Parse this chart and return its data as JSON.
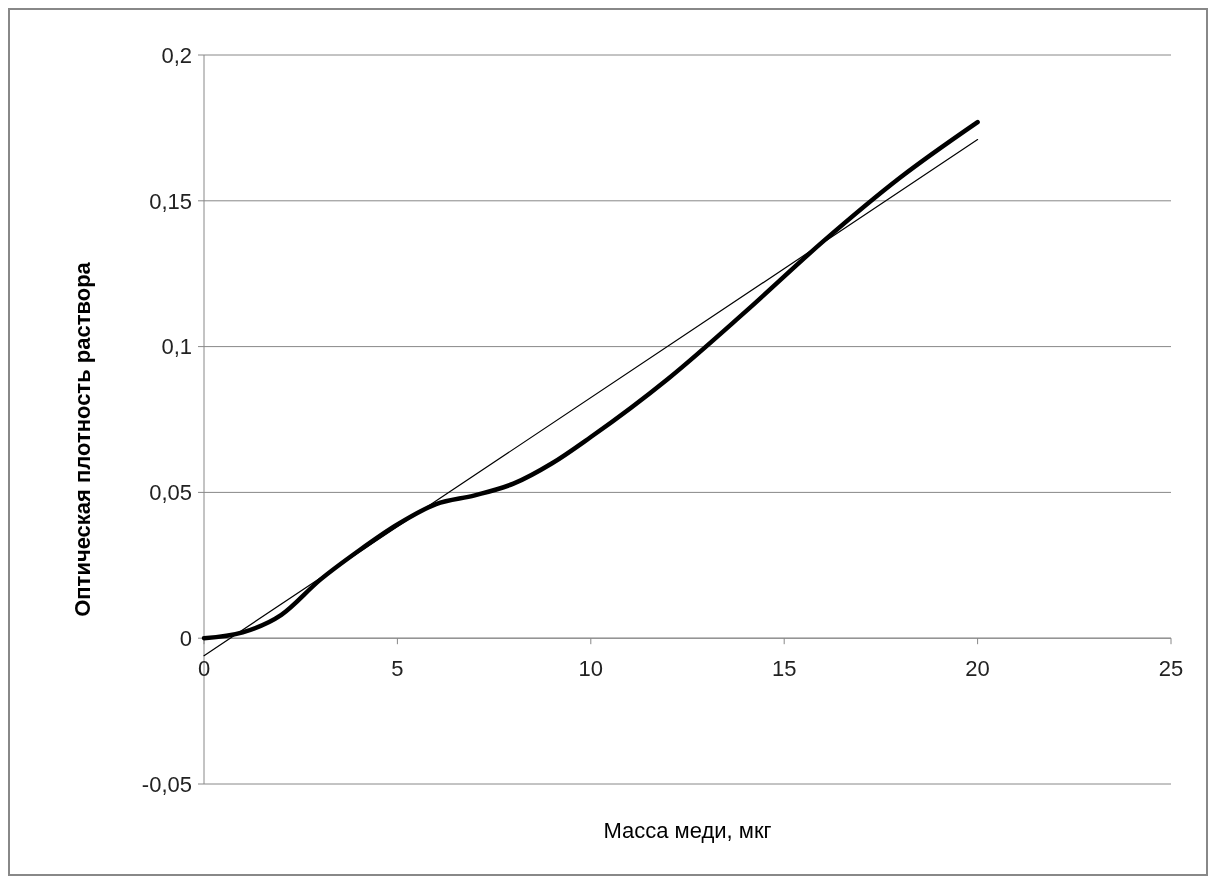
{
  "chart_data": {
    "type": "line",
    "xlabel": "Масса меди, мкг",
    "ylabel": "Оптическая плотность  раствора",
    "xlim": [
      0,
      25
    ],
    "xticks": [
      0,
      5,
      10,
      15,
      20,
      25
    ],
    "ylim": [
      -0.05,
      0.2
    ],
    "yticks": [
      {
        "value": -0.05,
        "label": "-0,05"
      },
      {
        "value": 0,
        "label": "0"
      },
      {
        "value": 0.05,
        "label": "0,05"
      },
      {
        "value": 0.1,
        "label": "0,1"
      },
      {
        "value": 0.15,
        "label": "0,15"
      },
      {
        "value": 0.2,
        "label": "0,2"
      }
    ],
    "grid": "y",
    "series": [
      {
        "color": "#000000",
        "x": [
          0,
          1,
          2,
          3,
          4,
          5,
          6,
          7,
          8,
          9,
          10,
          12,
          14,
          16,
          18,
          20
        ],
        "values": [
          0,
          0.002,
          0.008,
          0.02,
          0.03,
          0.039,
          0.046,
          0.049,
          0.053,
          0.06,
          0.069,
          0.089,
          0.112,
          0.136,
          0.158,
          0.177
        ]
      },
      {
        "type": "line",
        "color": "#000000",
        "x": [
          0,
          20
        ],
        "values": [
          -0.006,
          0.171
        ]
      }
    ]
  }
}
